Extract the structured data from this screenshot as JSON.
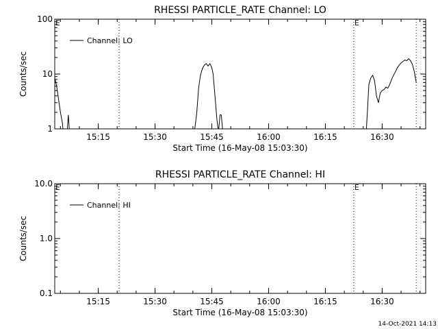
{
  "footer": {
    "timestamp": "14-Oct-2021 14:13"
  },
  "chart_data": [
    {
      "type": "line",
      "title": "RHESSI PARTICLE_RATE Channel: LO",
      "xlabel": "Start Time (16-May-08 15:03:30)",
      "ylabel": "Counts/sec",
      "y_scale": "log",
      "ylim": [
        1,
        100
      ],
      "y_ticks": [
        "1",
        "10",
        "100"
      ],
      "xlim": [
        "15:03:30",
        "16:41:30"
      ],
      "x_ticks": [
        "15:15",
        "15:30",
        "15:45",
        "16:00",
        "16:15",
        "16:30"
      ],
      "legend": {
        "position": "top-left",
        "entries": [
          "Channel: LO"
        ]
      },
      "markers": [
        {
          "label": "E",
          "time": "15:03:30",
          "style": "none"
        },
        {
          "time": "15:20:30",
          "style": "dotted"
        },
        {
          "label": "E",
          "time": "16:22:30",
          "style": "dotted"
        },
        {
          "time": "16:39:00",
          "style": "dotted"
        }
      ],
      "series": [
        {
          "name": "Channel: LO",
          "segments": [
            {
              "x": [
                "15:03:30",
                "15:04:00",
                "15:04:30",
                "15:05:00",
                "15:05:30",
                "15:05:40"
              ],
              "y": [
                8.5,
                6.0,
                3.5,
                2.0,
                1.3,
                1.0
              ]
            },
            {
              "x": [
                "15:06:50",
                "15:07:05",
                "15:07:20"
              ],
              "y": [
                1.0,
                1.8,
                1.0
              ]
            },
            {
              "x": [
                "15:40:30",
                "15:41:00",
                "15:41:30",
                "15:42:00",
                "15:42:30",
                "15:43:00",
                "15:43:30",
                "15:44:00",
                "15:44:30",
                "15:45:00",
                "15:45:20"
              ],
              "y": [
                1.0,
                1.9,
                5.5,
                9.5,
                12.5,
                14.5,
                15.5,
                14.0,
                15.5,
                13.0,
                10.0
              ]
            },
            {
              "x": [
                "15:45:20",
                "15:45:50",
                "15:46:20",
                "15:46:40"
              ],
              "y": [
                10.0,
                4.0,
                1.5,
                1.0
              ]
            },
            {
              "x": [
                "15:46:50",
                "15:47:10",
                "15:47:30",
                "15:47:50"
              ],
              "y": [
                1.0,
                1.8,
                1.8,
                1.0
              ]
            },
            {
              "x": [
                "16:25:50",
                "16:26:10",
                "16:26:30",
                "16:27:00",
                "16:27:30",
                "16:28:00",
                "16:28:30",
                "16:29:00",
                "16:29:30",
                "16:30:00",
                "16:30:30",
                "16:31:00",
                "16:31:30",
                "16:32:00",
                "16:32:30",
                "16:33:00",
                "16:33:30",
                "16:34:00",
                "16:34:30",
                "16:35:00",
                "16:35:30",
                "16:36:00",
                "16:36:30",
                "16:37:00",
                "16:37:30",
                "16:38:00",
                "16:38:30",
                "16:39:00"
              ],
              "y": [
                1.0,
                2.5,
                6.5,
                8.5,
                9.5,
                7.5,
                4.0,
                3.0,
                4.5,
                5.0,
                5.2,
                5.8,
                5.5,
                6.5,
                8.0,
                9.5,
                11.0,
                13.0,
                14.5,
                16.0,
                17.0,
                18.0,
                17.5,
                19.0,
                17.5,
                15.0,
                11.0,
                7.0
              ]
            }
          ]
        }
      ]
    },
    {
      "type": "line",
      "title": "RHESSI PARTICLE_RATE Channel: HI",
      "xlabel": "Start Time (16-May-08 15:03:30)",
      "ylabel": "Counts/sec",
      "y_scale": "log",
      "ylim": [
        0.1,
        10
      ],
      "y_ticks": [
        "0.1",
        "1.0",
        "10.0"
      ],
      "xlim": [
        "15:03:30",
        "16:41:30"
      ],
      "x_ticks": [
        "15:15",
        "15:30",
        "15:45",
        "16:00",
        "16:15",
        "16:30"
      ],
      "legend": {
        "position": "top-left",
        "entries": [
          "Channel: HI"
        ]
      },
      "markers": [
        {
          "label": "E",
          "time": "15:03:30",
          "style": "none"
        },
        {
          "time": "15:20:30",
          "style": "dotted"
        },
        {
          "label": "E",
          "time": "16:22:30",
          "style": "dotted"
        },
        {
          "time": "16:39:00",
          "style": "dotted"
        }
      ],
      "series": [
        {
          "name": "Channel: HI",
          "segments": []
        }
      ]
    }
  ]
}
